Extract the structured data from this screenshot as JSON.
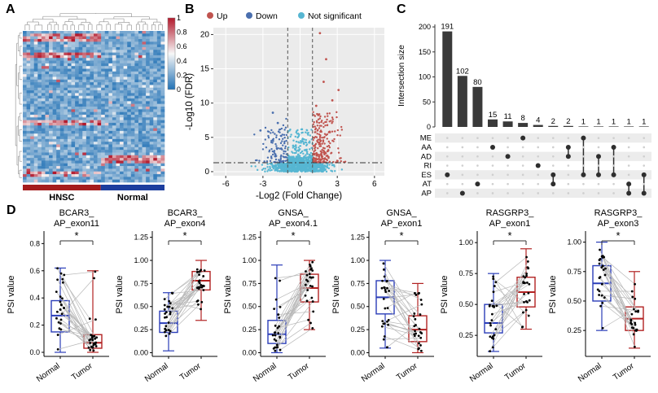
{
  "panels": {
    "A": "A",
    "B": "B",
    "C": "C",
    "D": "D"
  },
  "chart_data": [
    {
      "type": "heatmap",
      "panel": "A",
      "colorbar_ticks": [
        "1",
        "0.8",
        "0.6",
        "0.4",
        "0.2",
        "0"
      ],
      "palette": {
        "high": "#b2182b",
        "mid": "#f7f7f7",
        "low": "#2171b5"
      },
      "groups": [
        {
          "label": "HNSC",
          "color": "#a51c1c",
          "fraction": 0.55
        },
        {
          "label": "Normal",
          "color": "#1c3e9e",
          "fraction": 0.45
        }
      ],
      "grid": {
        "rows": 56,
        "cols": 38,
        "hnsc_cols": 21
      }
    },
    {
      "type": "scatter",
      "panel": "B",
      "legend": [
        {
          "label": "Up",
          "color": "#c0544f"
        },
        {
          "label": "Down",
          "color": "#4a6fae"
        },
        {
          "label": "Not significant",
          "color": "#56b6d2"
        }
      ],
      "xlabel": "-Log2 (Fold Change)",
      "ylabel": "-Log10 (FDR)",
      "xticks": [
        -6,
        -3,
        0,
        3,
        6
      ],
      "yticks": [
        0,
        5,
        10,
        15,
        20
      ],
      "xlim": [
        -7,
        6.8
      ],
      "ylim": [
        -0.6,
        21
      ],
      "fc_thresholds": [
        -1,
        1
      ],
      "fdr_threshold": 1.3,
      "counts": {
        "up": 230,
        "down": 110,
        "not_significant": 980
      },
      "up_outliers": [
        [
          1.6,
          20.2
        ],
        [
          2.1,
          16.4
        ],
        [
          1.9,
          13.1
        ],
        [
          3.1,
          11.9
        ],
        [
          2.6,
          10.4
        ],
        [
          1.3,
          9.6
        ]
      ],
      "down_outliers": [
        [
          -2.2,
          8.6
        ],
        [
          -1.8,
          7.1
        ],
        [
          -3.2,
          6.0
        ]
      ]
    },
    {
      "type": "bar",
      "subtype": "upset",
      "panel": "C",
      "ylabel": "Intersection size",
      "yticks": [
        0,
        50,
        100,
        150,
        200
      ],
      "values": [
        191,
        102,
        80,
        15,
        11,
        8,
        4,
        2,
        2,
        1,
        1,
        1,
        1,
        1
      ],
      "bar_labels": [
        "191",
        "102",
        "80",
        "15",
        "11",
        "8",
        "4",
        "2",
        "2",
        "1",
        "1",
        "1",
        "1",
        "1"
      ],
      "set_labels": [
        "ME",
        "AA",
        "AD",
        "RI",
        "ES",
        "AT",
        "AP"
      ],
      "memberships": [
        [
          "ES"
        ],
        [
          "AP"
        ],
        [
          "AT"
        ],
        [
          "AA"
        ],
        [
          "AD"
        ],
        [
          "ME"
        ],
        [
          "RI"
        ],
        [
          "ES",
          "AT"
        ],
        [
          "AA",
          "AD"
        ],
        [
          "ME",
          "ES"
        ],
        [
          "AD",
          "ES"
        ],
        [
          "AA",
          "ES"
        ],
        [
          "AT",
          "AP"
        ],
        [
          "ES",
          "AP"
        ]
      ],
      "bar_color": "#3a3a3a"
    },
    {
      "type": "boxplot",
      "panel": "D",
      "ylabel": "PSI value",
      "categories": [
        "Normal",
        "Tumor"
      ],
      "group_colors": {
        "Normal": "#2a3db8",
        "Tumor": "#b22222"
      },
      "significance": "*",
      "plots": [
        {
          "title_line1": "BCAR3_",
          "title_line2": "AP_exon11",
          "ytick_labels": [
            "0.0",
            "0.2",
            "0.4",
            "0.6",
            "0.8"
          ],
          "yticks": [
            0,
            0.2,
            0.4,
            0.6,
            0.8
          ],
          "ylim": [
            -0.03,
            0.88
          ],
          "normal": {
            "lo": 0,
            "q1": 0.15,
            "median": 0.27,
            "q3": 0.38,
            "hi": 0.62
          },
          "tumor": {
            "lo": 0,
            "q1": 0.03,
            "median": 0.07,
            "q3": 0.13,
            "hi": 0.6
          },
          "n_pairs": 26
        },
        {
          "title_line1": "BCAR3_",
          "title_line2": "AP_exon4",
          "ytick_labels": [
            "0.00",
            "0.25",
            "0.50",
            "0.75",
            "1.00",
            "1.25"
          ],
          "yticks": [
            0,
            0.25,
            0.5,
            0.75,
            1,
            1.25
          ],
          "ylim": [
            -0.04,
            1.3
          ],
          "normal": {
            "lo": 0.02,
            "q1": 0.22,
            "median": 0.32,
            "q3": 0.45,
            "hi": 0.65
          },
          "tumor": {
            "lo": 0.35,
            "q1": 0.68,
            "median": 0.78,
            "q3": 0.88,
            "hi": 1.0
          },
          "n_pairs": 26
        },
        {
          "title_line1": "GNSA_",
          "title_line2": "AP_exon4.1",
          "ytick_labels": [
            "0.00",
            "0.25",
            "0.50",
            "0.75",
            "1.00",
            "1.25"
          ],
          "yticks": [
            0,
            0.25,
            0.5,
            0.75,
            1,
            1.25
          ],
          "ylim": [
            -0.04,
            1.3
          ],
          "normal": {
            "lo": 0,
            "q1": 0.1,
            "median": 0.2,
            "q3": 0.35,
            "hi": 0.95
          },
          "tumor": {
            "lo": 0.25,
            "q1": 0.55,
            "median": 0.7,
            "q3": 0.85,
            "hi": 1.0
          },
          "n_pairs": 26
        },
        {
          "title_line1": "GNSA_",
          "title_line2": "AP_exon1",
          "ytick_labels": [
            "0.00",
            "0.25",
            "0.50",
            "0.75",
            "1.00",
            "1.25"
          ],
          "yticks": [
            0,
            0.25,
            0.5,
            0.75,
            1,
            1.25
          ],
          "ylim": [
            -0.04,
            1.3
          ],
          "normal": {
            "lo": 0.05,
            "q1": 0.42,
            "median": 0.6,
            "q3": 0.78,
            "hi": 1.0
          },
          "tumor": {
            "lo": 0,
            "q1": 0.12,
            "median": 0.25,
            "q3": 0.4,
            "hi": 0.75
          },
          "n_pairs": 26
        },
        {
          "title_line1": "RASGRP3_",
          "title_line2": "AP_exon1",
          "ytick_labels": [
            "0.25",
            "0.50",
            "0.75",
            "1.00"
          ],
          "yticks": [
            0.25,
            0.5,
            0.75,
            1
          ],
          "ylim": [
            0.08,
            1.08
          ],
          "normal": {
            "lo": 0.12,
            "q1": 0.27,
            "median": 0.35,
            "q3": 0.5,
            "hi": 0.75
          },
          "tumor": {
            "lo": 0.3,
            "q1": 0.48,
            "median": 0.6,
            "q3": 0.72,
            "hi": 0.95
          },
          "n_pairs": 24
        },
        {
          "title_line1": "RASGRP3_",
          "title_line2": "AP_exon3",
          "ytick_labels": [
            "0.25",
            "0.50",
            "0.75",
            "1.00"
          ],
          "yticks": [
            0.25,
            0.5,
            0.75,
            1
          ],
          "ylim": [
            0.03,
            1.08
          ],
          "normal": {
            "lo": 0.25,
            "q1": 0.5,
            "median": 0.65,
            "q3": 0.8,
            "hi": 1.0
          },
          "tumor": {
            "lo": 0.1,
            "q1": 0.25,
            "median": 0.35,
            "q3": 0.45,
            "hi": 0.75
          },
          "n_pairs": 24
        }
      ]
    }
  ]
}
